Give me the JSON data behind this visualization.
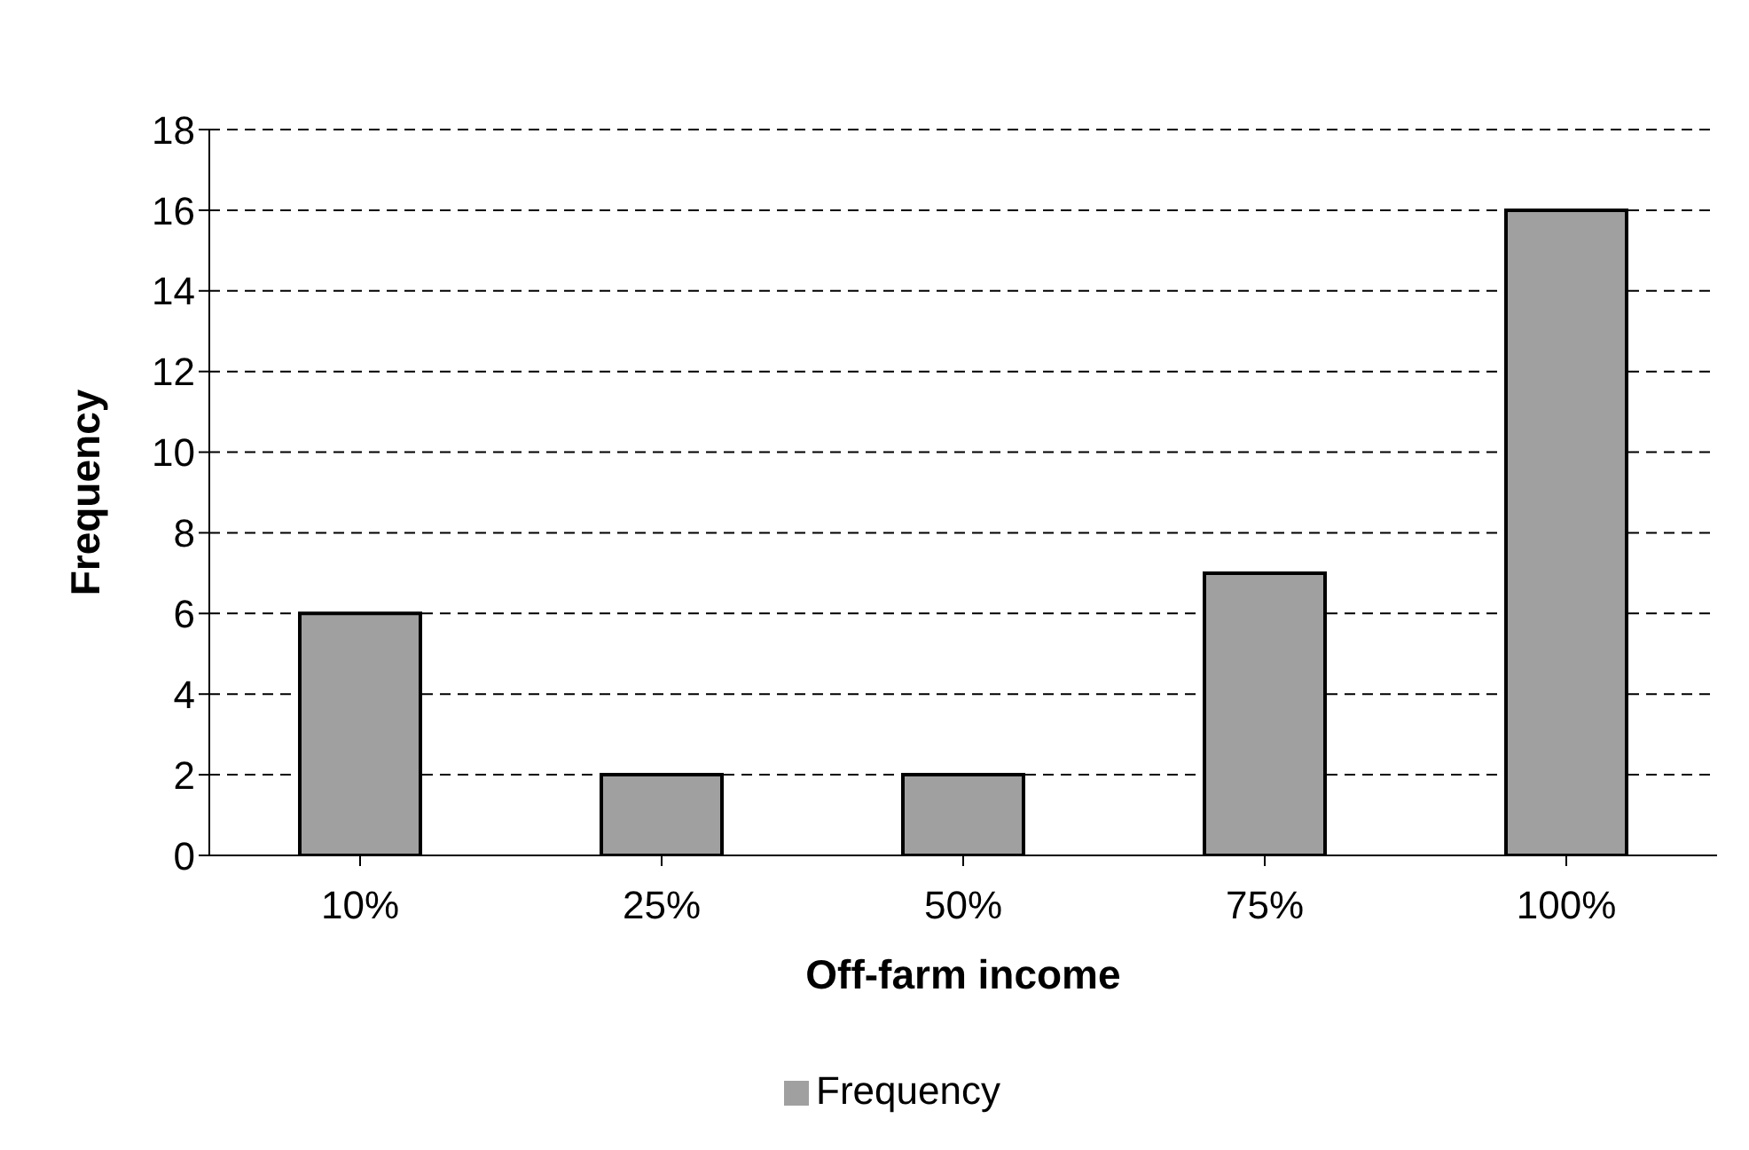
{
  "chart_data": {
    "type": "bar",
    "xlabel": "Off-farm income",
    "ylabel": "Frequency",
    "categories": [
      "10%",
      "25%",
      "50%",
      "75%",
      "100%"
    ],
    "series": [
      {
        "name": "Frequency",
        "color": "#a0a0a0",
        "values": [
          6,
          2,
          2,
          7,
          16
        ]
      }
    ],
    "ylim": [
      0,
      18
    ],
    "yticks": [
      0,
      2,
      4,
      6,
      8,
      10,
      12,
      14,
      16,
      18
    ],
    "grid": "y",
    "legend": "bottom"
  }
}
